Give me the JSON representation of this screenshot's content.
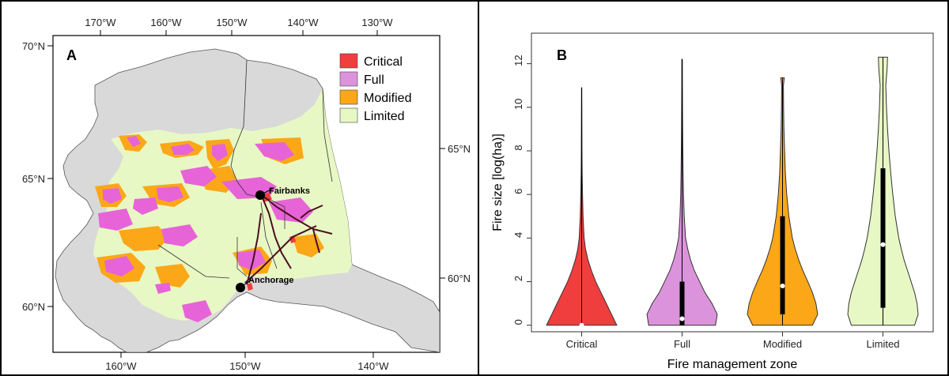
{
  "colors": {
    "critical": "#f03e3e",
    "full": "#db94db",
    "modified": "#fba717",
    "limited": "#e8f8c4",
    "land": "#d9d9d9",
    "road": "#4a1020"
  },
  "panel_a": {
    "label": "A",
    "top_lon_labels": [
      "170°W",
      "160°W",
      "150°W",
      "140°W",
      "130°W"
    ],
    "bottom_lon_labels": [
      "160°W",
      "150°W",
      "140°W"
    ],
    "left_lat_labels": [
      "70°N",
      "65°N",
      "60°N"
    ],
    "right_lat_labels": [
      "65°N",
      "60°N"
    ],
    "legend": [
      {
        "label": "Critical",
        "color": "#f03e3e"
      },
      {
        "label": "Full",
        "color": "#db94db"
      },
      {
        "label": "Modified",
        "color": "#fba717"
      },
      {
        "label": "Limited",
        "color": "#e8f8c4"
      }
    ],
    "cities": [
      {
        "name": "Fairbanks"
      },
      {
        "name": "Anchorage"
      }
    ]
  },
  "chart_data": {
    "type": "violin",
    "panel_label": "B",
    "categories": [
      "Critical",
      "Full",
      "Modified",
      "Limited"
    ],
    "xlabel": "Fire management zone",
    "ylabel": "Fire size [log(ha)]",
    "ylim": [
      -0.3,
      13.4
    ],
    "yticks": [
      0,
      2,
      4,
      6,
      8,
      10,
      12
    ],
    "series": [
      {
        "name": "Critical",
        "color": "#f03e3e",
        "min": 0,
        "max": 10.9,
        "q1": 0,
        "median": 0,
        "q3": 0,
        "profile": [
          [
            0,
            1.0
          ],
          [
            0.5,
            0.85
          ],
          [
            1,
            0.7
          ],
          [
            1.5,
            0.55
          ],
          [
            2,
            0.4
          ],
          [
            2.5,
            0.28
          ],
          [
            3,
            0.18
          ],
          [
            3.5,
            0.11
          ],
          [
            4,
            0.07
          ],
          [
            5,
            0.04
          ],
          [
            6,
            0.025
          ],
          [
            7,
            0.015
          ],
          [
            8,
            0.01
          ],
          [
            9,
            0.008
          ],
          [
            10,
            0.006
          ],
          [
            10.9,
            0.004
          ]
        ]
      },
      {
        "name": "Full",
        "color": "#db94db",
        "min": 0,
        "max": 12.2,
        "q1": 0,
        "median": 0.3,
        "q3": 2.0,
        "profile": [
          [
            0,
            0.95
          ],
          [
            0.5,
            1.0
          ],
          [
            1,
            0.85
          ],
          [
            1.5,
            0.65
          ],
          [
            2,
            0.5
          ],
          [
            2.5,
            0.35
          ],
          [
            3,
            0.24
          ],
          [
            3.5,
            0.16
          ],
          [
            4,
            0.1
          ],
          [
            5,
            0.06
          ],
          [
            6,
            0.04
          ],
          [
            7,
            0.03
          ],
          [
            8,
            0.022
          ],
          [
            9,
            0.017
          ],
          [
            10,
            0.013
          ],
          [
            11,
            0.01
          ],
          [
            12.2,
            0.008
          ]
        ]
      },
      {
        "name": "Modified",
        "color": "#fba717",
        "min": 0,
        "max": 11.35,
        "q1": 0.5,
        "median": 1.8,
        "q3": 5.0,
        "profile": [
          [
            0,
            0.85
          ],
          [
            0.5,
            1.0
          ],
          [
            1,
            0.95
          ],
          [
            1.5,
            0.85
          ],
          [
            2,
            0.72
          ],
          [
            2.5,
            0.58
          ],
          [
            3,
            0.46
          ],
          [
            3.5,
            0.36
          ],
          [
            4,
            0.28
          ],
          [
            5,
            0.18
          ],
          [
            6,
            0.12
          ],
          [
            7,
            0.08
          ],
          [
            8,
            0.06
          ],
          [
            9,
            0.04
          ],
          [
            10,
            0.03
          ],
          [
            11,
            0.025
          ],
          [
            11.35,
            0.05
          ]
        ]
      },
      {
        "name": "Limited",
        "color": "#e8f8c4",
        "min": 0,
        "max": 12.3,
        "q1": 0.8,
        "median": 3.7,
        "q3": 7.2,
        "profile": [
          [
            0,
            0.9
          ],
          [
            0.5,
            1.0
          ],
          [
            1,
            0.97
          ],
          [
            1.5,
            0.9
          ],
          [
            2,
            0.8
          ],
          [
            2.5,
            0.7
          ],
          [
            3,
            0.6
          ],
          [
            3.5,
            0.52
          ],
          [
            4,
            0.45
          ],
          [
            5,
            0.35
          ],
          [
            6,
            0.28
          ],
          [
            7,
            0.22
          ],
          [
            8,
            0.17
          ],
          [
            9,
            0.13
          ],
          [
            10,
            0.1
          ],
          [
            11,
            0.08
          ],
          [
            11.8,
            0.12
          ],
          [
            12.3,
            0.13
          ]
        ]
      }
    ]
  }
}
